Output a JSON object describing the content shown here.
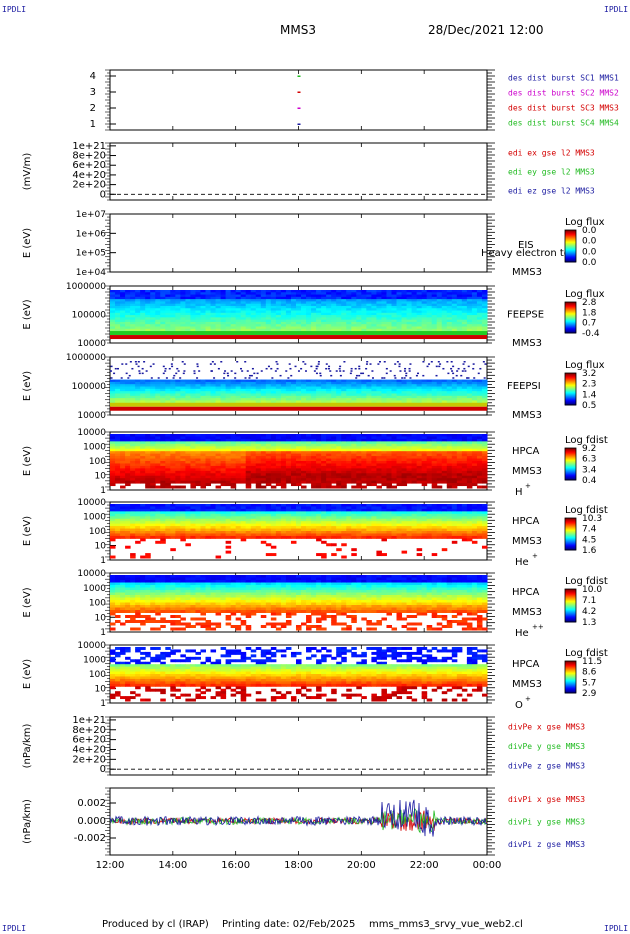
{
  "corners": {
    "top_left": "IPDLI",
    "top_right": "IPDLI",
    "bottom_left": "IPDLI",
    "bottom_right": "IPDLI"
  },
  "header": {
    "spacecraft": "MMS3",
    "datetime": "28/Dec/2021 12:00"
  },
  "footer": {
    "produced_by": "Produced by cl (IRAP)",
    "printing_date": "Printing date: 02/Feb/2025",
    "filename": "mms_mms3_srvy_vue_web2.cl"
  },
  "time_axis": {
    "ticks": [
      "12:00",
      "14:00",
      "16:00",
      "18:00",
      "20:00",
      "22:00",
      "00:00"
    ]
  },
  "colors": {
    "red": "#d40000",
    "green": "#22bb22",
    "blue": "#1a1aa0",
    "magenta": "#cc00cc"
  },
  "chart_data": [
    {
      "type": "scatter",
      "id": "burst",
      "ylabels": [
        "4",
        "3",
        "2",
        "1"
      ],
      "legend": [
        {
          "text": "des dist burst SC1 MMS1",
          "color": "#1a1aa0"
        },
        {
          "text": "des dist burst SC2 MMS2",
          "color": "#cc00cc"
        },
        {
          "text": "des dist burst SC3 MMS3",
          "color": "#d40000"
        },
        {
          "text": "des dist burst SC4 MMS4",
          "color": "#22bb22"
        }
      ],
      "points": [
        {
          "x": "18:00",
          "y": 4,
          "color": "#22bb22"
        },
        {
          "x": "18:00",
          "y": 3,
          "color": "#d40000"
        },
        {
          "x": "18:00",
          "y": 2,
          "color": "#cc00cc"
        },
        {
          "x": "18:00",
          "y": 1,
          "color": "#1a1aa0"
        }
      ]
    },
    {
      "type": "line",
      "id": "edi",
      "ylabel": "(mV/m)",
      "ticks": [
        "1e+21",
        "8e+20",
        "6e+20",
        "4e+20",
        "2e+20",
        "0"
      ],
      "legend": [
        {
          "text": "edi ex gse l2 MMS3",
          "color": "#d40000"
        },
        {
          "text": "edi ey gse l2 MMS3",
          "color": "#22bb22"
        },
        {
          "text": "edi ez gse l2 MMS3",
          "color": "#1a1aa0"
        }
      ]
    },
    {
      "type": "heatmap",
      "id": "eis",
      "ylabel": "E (eV)",
      "ticks": [
        "1e+07",
        "1e+06",
        "1e+05",
        "1e+04"
      ],
      "labels": [
        "EIS",
        "MMS3"
      ],
      "overlay": "Heavy electron to",
      "cbar_title": "Log flux",
      "cbar": [
        "0.0",
        "0.0",
        "0.0",
        "0.0"
      ]
    },
    {
      "type": "heatmap",
      "id": "feepse",
      "ylabel": "E (eV)",
      "ticks": [
        "1000000",
        "100000",
        "10000"
      ],
      "labels": [
        "FEEPSE",
        "MMS3"
      ],
      "cbar_title": "Log flux",
      "cbar": [
        "2.8",
        "1.8",
        "0.7",
        "-0.4"
      ]
    },
    {
      "type": "heatmap",
      "id": "feepsi",
      "ylabel": "E (eV)",
      "ticks": [
        "1000000",
        "100000",
        "10000"
      ],
      "labels": [
        "FEEPSI",
        "MMS3"
      ],
      "cbar_title": "Log flux",
      "cbar": [
        "3.2",
        "2.3",
        "1.4",
        "0.5"
      ]
    },
    {
      "type": "heatmap",
      "id": "hpca_h",
      "ylabel": "E (eV)",
      "ticks": [
        "10000",
        "1000",
        "100",
        "10",
        "1"
      ],
      "labels": [
        "HPCA",
        "MMS3"
      ],
      "species": "H",
      "charge": "+",
      "cbar_title": "Log fdist",
      "cbar": [
        "9.2",
        "6.3",
        "3.4",
        "0.4"
      ]
    },
    {
      "type": "heatmap",
      "id": "hpca_he",
      "ylabel": "E (eV)",
      "ticks": [
        "10000",
        "1000",
        "100",
        "10",
        "1"
      ],
      "labels": [
        "HPCA",
        "MMS3"
      ],
      "species": "He",
      "charge": "+",
      "cbar_title": "Log fdist",
      "cbar": [
        "10.3",
        "7.4",
        "4.5",
        "1.6"
      ]
    },
    {
      "type": "heatmap",
      "id": "hpca_hepp",
      "ylabel": "E (eV)",
      "ticks": [
        "10000",
        "1000",
        "100",
        "10",
        "1"
      ],
      "labels": [
        "HPCA",
        "MMS3"
      ],
      "species": "He",
      "charge": "++",
      "cbar_title": "Log fdist",
      "cbar": [
        "10.0",
        "7.1",
        "4.2",
        "1.3"
      ]
    },
    {
      "type": "heatmap",
      "id": "hpca_o",
      "ylabel": "E (eV)",
      "ticks": [
        "10000",
        "1000",
        "100",
        "10",
        "1"
      ],
      "labels": [
        "HPCA",
        "MMS3"
      ],
      "species": "O",
      "charge": "+",
      "cbar_title": "Log fdist",
      "cbar": [
        "11.5",
        "8.6",
        "5.7",
        "2.9"
      ]
    },
    {
      "type": "line",
      "id": "divpe",
      "ylabel": "(nPa/km)",
      "ticks": [
        "1e+21",
        "8e+20",
        "6e+20",
        "4e+20",
        "2e+20",
        "0"
      ],
      "legend": [
        {
          "text": "divPe x gse MMS3",
          "color": "#d40000"
        },
        {
          "text": "divPe y gse MMS3",
          "color": "#22bb22"
        },
        {
          "text": "divPe z gse MMS3",
          "color": "#1a1aa0"
        }
      ]
    },
    {
      "type": "line",
      "id": "divpi",
      "ylabel": "(nPa/km)",
      "ticks": [
        "0.002",
        "0.000",
        "-0.002"
      ],
      "legend": [
        {
          "text": "divPi x gse MMS3",
          "color": "#d40000"
        },
        {
          "text": "divPi y gse MMS3",
          "color": "#22bb22"
        },
        {
          "text": "divPi z gse MMS3",
          "color": "#1a1aa0"
        }
      ]
    }
  ]
}
